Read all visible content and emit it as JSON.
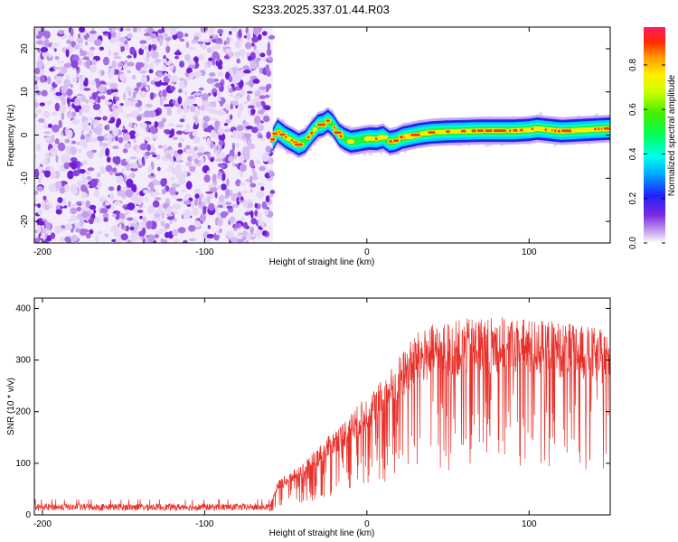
{
  "title": "S233.2025.337.01.44.R03",
  "chart_data": [
    {
      "type": "heatmap",
      "name": "spectrogram",
      "xlabel": "Height of straight line (km)",
      "ylabel": "Frequency (Hz)",
      "xlim": [
        -205,
        150
      ],
      "ylim": [
        -25,
        25
      ],
      "xticks": [
        -200,
        -100,
        0,
        100
      ],
      "yticks": [
        -20,
        -10,
        0,
        10,
        20
      ],
      "noise_region_x": [
        -205,
        -58
      ],
      "ridge": {
        "x": [
          -58,
          -55,
          -50,
          -45,
          -42,
          -38,
          -34,
          -30,
          -27,
          -24,
          -21,
          -17,
          -14,
          -10,
          -6,
          -2,
          2,
          6,
          10,
          14,
          18,
          22,
          26,
          32,
          40,
          50,
          60,
          70,
          80,
          90,
          100,
          105,
          110,
          115,
          120,
          125,
          130,
          135,
          140,
          145,
          150
        ],
        "y": [
          -1,
          1,
          -0.5,
          -1.5,
          -2.2,
          -1.5,
          0.5,
          2.2,
          2.5,
          3.3,
          2.3,
          0,
          -0.8,
          -1.5,
          -1.3,
          -1.0,
          -0.8,
          -0.9,
          -0.5,
          -1.6,
          -1.3,
          -0.6,
          -0.3,
          0.2,
          0.6,
          0.8,
          0.9,
          1.0,
          1.0,
          1.0,
          1.2,
          1.5,
          1.3,
          1.1,
          0.9,
          1.0,
          1.1,
          1.2,
          1.3,
          1.4,
          1.5
        ]
      },
      "colorbar": {
        "label": "Normalized spectral amplitude",
        "ticks": [
          "0.0",
          "0.2",
          "0.4",
          "0.6",
          "0.8"
        ],
        "range": [
          0,
          0.97
        ]
      }
    },
    {
      "type": "line",
      "name": "snr",
      "xlabel": "Height of straight line (km)",
      "ylabel": "SNR (10 * v/v)",
      "xlim": [
        -205,
        150
      ],
      "ylim": [
        0,
        420
      ],
      "xticks": [
        -200,
        -100,
        0,
        100
      ],
      "yticks": [
        0,
        100,
        200,
        300,
        400
      ],
      "color": "#e8302a",
      "envelope": {
        "x": [
          -205,
          -60,
          -55,
          -50,
          -40,
          -30,
          -20,
          -10,
          0,
          10,
          20,
          30,
          40,
          50,
          60,
          70,
          80,
          90,
          100,
          110,
          120,
          130,
          140,
          150
        ],
        "y": [
          15,
          15,
          60,
          70,
          90,
          120,
          150,
          180,
          210,
          240,
          280,
          320,
          335,
          340,
          345,
          350,
          350,
          350,
          345,
          345,
          340,
          335,
          330,
          320
        ]
      }
    }
  ]
}
